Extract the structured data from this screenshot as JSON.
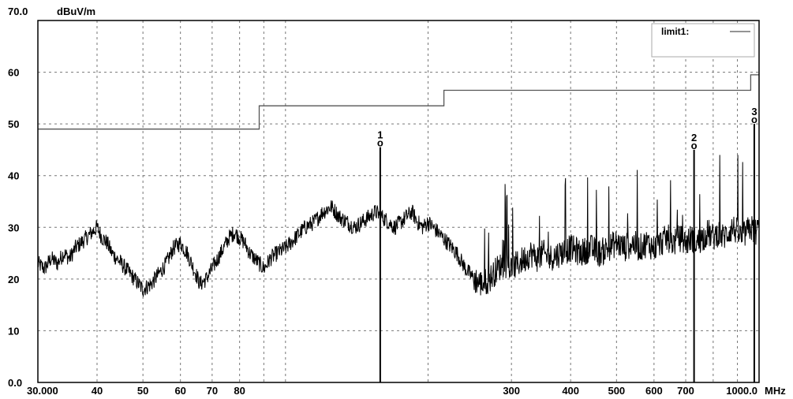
{
  "chart_data": {
    "type": "line",
    "title": "",
    "ylabel": "dBuV/m",
    "xlabel": "MHz",
    "x_scale": "log",
    "xlim": [
      30,
      1000
    ],
    "ylim": [
      0,
      70
    ],
    "grid": true,
    "legend_placement": "top-right",
    "y_ticks": [
      {
        "value": 0,
        "label": "0.0"
      },
      {
        "value": 10,
        "label": "10"
      },
      {
        "value": 20,
        "label": "20"
      },
      {
        "value": 30,
        "label": "30"
      },
      {
        "value": 40,
        "label": "40"
      },
      {
        "value": 50,
        "label": "50"
      },
      {
        "value": 60,
        "label": "60"
      },
      {
        "value": 70,
        "label": "70.0"
      }
    ],
    "x_ticks": [
      {
        "value": 30,
        "label": "30.000"
      },
      {
        "value": 40,
        "label": "40"
      },
      {
        "value": 50,
        "label": "50"
      },
      {
        "value": 60,
        "label": "60"
      },
      {
        "value": 70,
        "label": "70"
      },
      {
        "value": 80,
        "label": "80"
      },
      {
        "value": 300,
        "label": "300"
      },
      {
        "value": 400,
        "label": "400"
      },
      {
        "value": 500,
        "label": "500"
      },
      {
        "value": 600,
        "label": "600"
      },
      {
        "value": 700,
        "label": "700"
      },
      {
        "value": 1000,
        "label": "1000.0"
      }
    ],
    "x_unit_label": "MHz",
    "vgrid_lines": [
      40,
      50,
      60,
      70,
      80,
      90,
      100,
      200,
      300,
      400,
      500,
      600,
      700,
      800,
      900
    ],
    "series": [
      {
        "name": "limit1:",
        "color": "#555555",
        "x": [
          30,
          88,
          88,
          216,
          216,
          960,
          960,
          1000
        ],
        "y": [
          49,
          49,
          53.5,
          53.5,
          56.5,
          56.5,
          59.5,
          59.5
        ]
      },
      {
        "color": "#000000",
        "x": [
          30,
          31,
          32,
          33,
          34,
          35,
          36,
          37,
          38,
          39,
          40,
          41,
          42,
          43,
          44,
          45,
          46,
          47,
          48,
          49,
          50,
          52,
          54,
          56,
          58,
          60,
          62,
          64,
          66,
          68,
          70,
          72,
          74,
          76,
          78,
          80,
          82,
          84,
          86,
          88,
          90,
          93,
          96,
          100,
          105,
          110,
          115,
          120,
          125,
          130,
          135,
          140,
          145,
          150,
          155,
          160,
          165,
          170,
          175,
          180,
          185,
          190,
          195,
          200,
          205,
          210,
          220,
          230,
          240,
          250,
          260,
          270,
          280,
          290,
          300,
          310,
          320,
          330,
          340,
          350,
          360,
          380,
          400,
          420,
          440,
          460,
          480,
          500,
          520,
          540,
          560,
          580,
          600,
          620,
          640,
          660,
          680,
          700,
          720,
          740,
          760,
          780,
          800,
          820,
          840,
          860,
          880,
          900,
          920,
          940,
          960,
          980,
          1000
        ],
        "y": [
          23,
          22,
          24,
          23,
          25,
          24,
          26,
          27,
          28,
          29,
          30,
          28,
          27,
          25,
          24,
          23,
          22,
          21,
          20,
          19,
          18,
          19,
          21,
          23,
          26,
          27,
          25,
          22,
          19,
          20,
          22,
          24,
          26,
          28,
          29,
          28,
          27,
          25,
          24,
          23,
          22,
          24,
          25,
          26,
          28,
          30,
          31,
          33,
          34,
          32,
          31,
          30,
          31,
          32,
          33,
          32,
          31,
          30,
          31,
          32,
          33,
          31,
          30,
          31,
          30,
          29,
          27,
          25,
          22,
          20,
          19,
          20,
          22,
          23,
          22,
          23,
          24,
          25,
          24,
          25,
          24,
          25,
          26,
          25,
          26,
          25,
          26,
          27,
          26,
          27,
          26,
          27,
          26,
          27,
          28,
          27,
          28,
          27,
          28,
          27,
          28,
          29,
          28,
          29,
          28,
          29,
          30,
          29,
          28,
          29,
          30,
          29,
          30
        ]
      }
    ],
    "markers": [
      {
        "label": "1",
        "symbol": "o",
        "x": 158.5,
        "y": 45.5
      },
      {
        "label": "2",
        "symbol": "o",
        "x": 729,
        "y": 45
      },
      {
        "label": "3",
        "symbol": "o",
        "x": 977,
        "y": 50
      }
    ]
  }
}
